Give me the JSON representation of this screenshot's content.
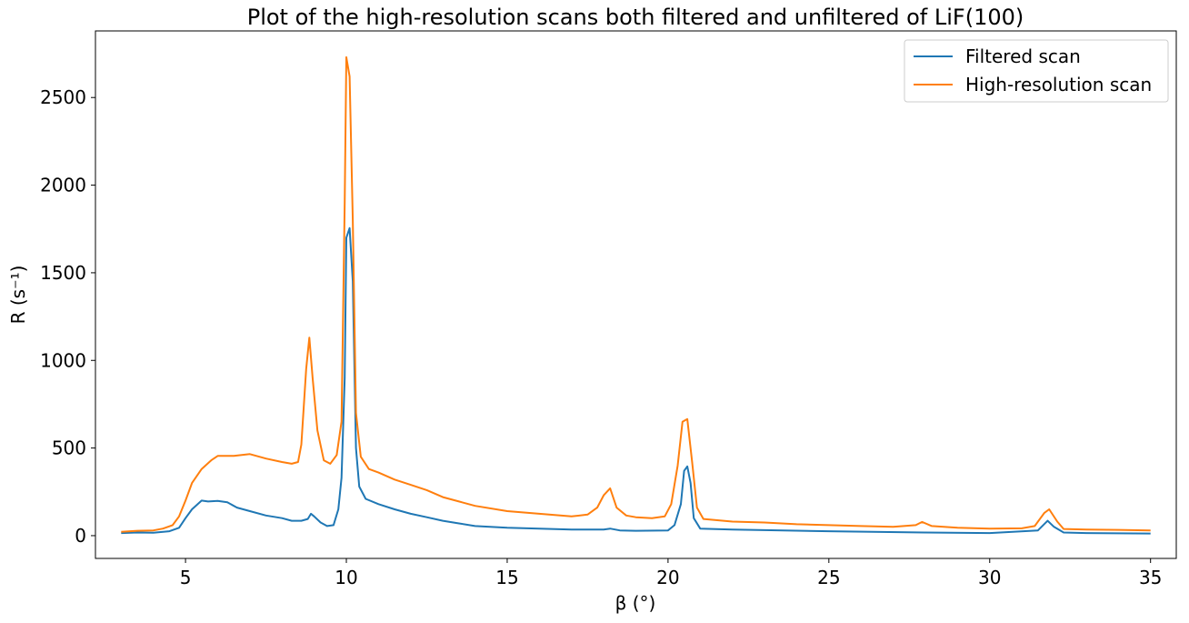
{
  "chart_data": {
    "type": "line",
    "title": "Plot of the high-resolution scans both filtered and unfiltered of LiF(100)",
    "xlabel": "β (°)",
    "ylabel": "R (s⁻¹)",
    "xlim": [
      2.2,
      35.8
    ],
    "ylim": [
      -130,
      2880
    ],
    "xticks": [
      5,
      10,
      15,
      20,
      25,
      30,
      35
    ],
    "yticks": [
      0,
      500,
      1000,
      1500,
      2000,
      2500
    ],
    "grid": false,
    "legend_position": "top-right",
    "series": [
      {
        "name": "Filtered scan",
        "color": "#1f77b4",
        "points": [
          [
            3.0,
            15
          ],
          [
            3.5,
            18
          ],
          [
            4.0,
            17
          ],
          [
            4.5,
            25
          ],
          [
            4.8,
            45
          ],
          [
            5.0,
            100
          ],
          [
            5.2,
            150
          ],
          [
            5.5,
            200
          ],
          [
            5.7,
            195
          ],
          [
            6.0,
            198
          ],
          [
            6.3,
            190
          ],
          [
            6.6,
            160
          ],
          [
            7.0,
            140
          ],
          [
            7.5,
            115
          ],
          [
            8.0,
            100
          ],
          [
            8.3,
            85
          ],
          [
            8.6,
            85
          ],
          [
            8.8,
            95
          ],
          [
            8.9,
            125
          ],
          [
            9.0,
            110
          ],
          [
            9.2,
            75
          ],
          [
            9.4,
            55
          ],
          [
            9.6,
            60
          ],
          [
            9.75,
            150
          ],
          [
            9.85,
            330
          ],
          [
            9.95,
            900
          ],
          [
            10.0,
            1700
          ],
          [
            10.1,
            1755
          ],
          [
            10.2,
            1450
          ],
          [
            10.3,
            500
          ],
          [
            10.4,
            280
          ],
          [
            10.6,
            210
          ],
          [
            11.0,
            180
          ],
          [
            11.5,
            150
          ],
          [
            12.0,
            125
          ],
          [
            12.5,
            105
          ],
          [
            13.0,
            85
          ],
          [
            13.5,
            70
          ],
          [
            14.0,
            55
          ],
          [
            15.0,
            45
          ],
          [
            16.0,
            40
          ],
          [
            17.0,
            35
          ],
          [
            18.0,
            35
          ],
          [
            18.2,
            40
          ],
          [
            18.5,
            30
          ],
          [
            19.0,
            28
          ],
          [
            20.0,
            30
          ],
          [
            20.2,
            60
          ],
          [
            20.4,
            180
          ],
          [
            20.5,
            370
          ],
          [
            20.6,
            395
          ],
          [
            20.7,
            300
          ],
          [
            20.8,
            100
          ],
          [
            21.0,
            40
          ],
          [
            22.0,
            35
          ],
          [
            25.0,
            25
          ],
          [
            28.0,
            18
          ],
          [
            30.0,
            15
          ],
          [
            31.5,
            30
          ],
          [
            31.8,
            85
          ],
          [
            32.0,
            50
          ],
          [
            32.3,
            18
          ],
          [
            33.0,
            15
          ],
          [
            35.0,
            12
          ]
        ]
      },
      {
        "name": "High-resolution scan",
        "color": "#ff7f0e",
        "points": [
          [
            3.0,
            22
          ],
          [
            3.5,
            28
          ],
          [
            4.0,
            30
          ],
          [
            4.3,
            40
          ],
          [
            4.6,
            60
          ],
          [
            4.8,
            110
          ],
          [
            5.0,
            200
          ],
          [
            5.2,
            300
          ],
          [
            5.5,
            380
          ],
          [
            5.8,
            430
          ],
          [
            6.0,
            455
          ],
          [
            6.5,
            455
          ],
          [
            7.0,
            465
          ],
          [
            7.5,
            440
          ],
          [
            8.0,
            420
          ],
          [
            8.3,
            410
          ],
          [
            8.5,
            420
          ],
          [
            8.6,
            520
          ],
          [
            8.75,
            950
          ],
          [
            8.85,
            1130
          ],
          [
            8.95,
            900
          ],
          [
            9.1,
            600
          ],
          [
            9.3,
            430
          ],
          [
            9.5,
            410
          ],
          [
            9.7,
            460
          ],
          [
            9.85,
            650
          ],
          [
            9.95,
            1900
          ],
          [
            10.0,
            2730
          ],
          [
            10.1,
            2620
          ],
          [
            10.2,
            1800
          ],
          [
            10.3,
            700
          ],
          [
            10.45,
            450
          ],
          [
            10.7,
            380
          ],
          [
            11.0,
            360
          ],
          [
            11.5,
            320
          ],
          [
            12.0,
            290
          ],
          [
            12.5,
            260
          ],
          [
            13.0,
            220
          ],
          [
            13.5,
            195
          ],
          [
            14.0,
            170
          ],
          [
            15.0,
            140
          ],
          [
            16.0,
            125
          ],
          [
            17.0,
            110
          ],
          [
            17.5,
            120
          ],
          [
            17.8,
            160
          ],
          [
            18.0,
            230
          ],
          [
            18.2,
            270
          ],
          [
            18.4,
            160
          ],
          [
            18.7,
            115
          ],
          [
            19.0,
            105
          ],
          [
            19.5,
            100
          ],
          [
            19.9,
            110
          ],
          [
            20.1,
            180
          ],
          [
            20.3,
            400
          ],
          [
            20.45,
            650
          ],
          [
            20.6,
            665
          ],
          [
            20.75,
            420
          ],
          [
            20.9,
            160
          ],
          [
            21.1,
            95
          ],
          [
            22.0,
            80
          ],
          [
            23.0,
            75
          ],
          [
            24.0,
            65
          ],
          [
            25.0,
            60
          ],
          [
            26.0,
            55
          ],
          [
            27.0,
            50
          ],
          [
            27.7,
            60
          ],
          [
            27.9,
            78
          ],
          [
            28.2,
            55
          ],
          [
            29.0,
            45
          ],
          [
            30.0,
            40
          ],
          [
            31.0,
            42
          ],
          [
            31.4,
            55
          ],
          [
            31.7,
            130
          ],
          [
            31.85,
            150
          ],
          [
            32.1,
            80
          ],
          [
            32.3,
            38
          ],
          [
            33.0,
            35
          ],
          [
            34.0,
            33
          ],
          [
            35.0,
            30
          ]
        ]
      }
    ]
  }
}
